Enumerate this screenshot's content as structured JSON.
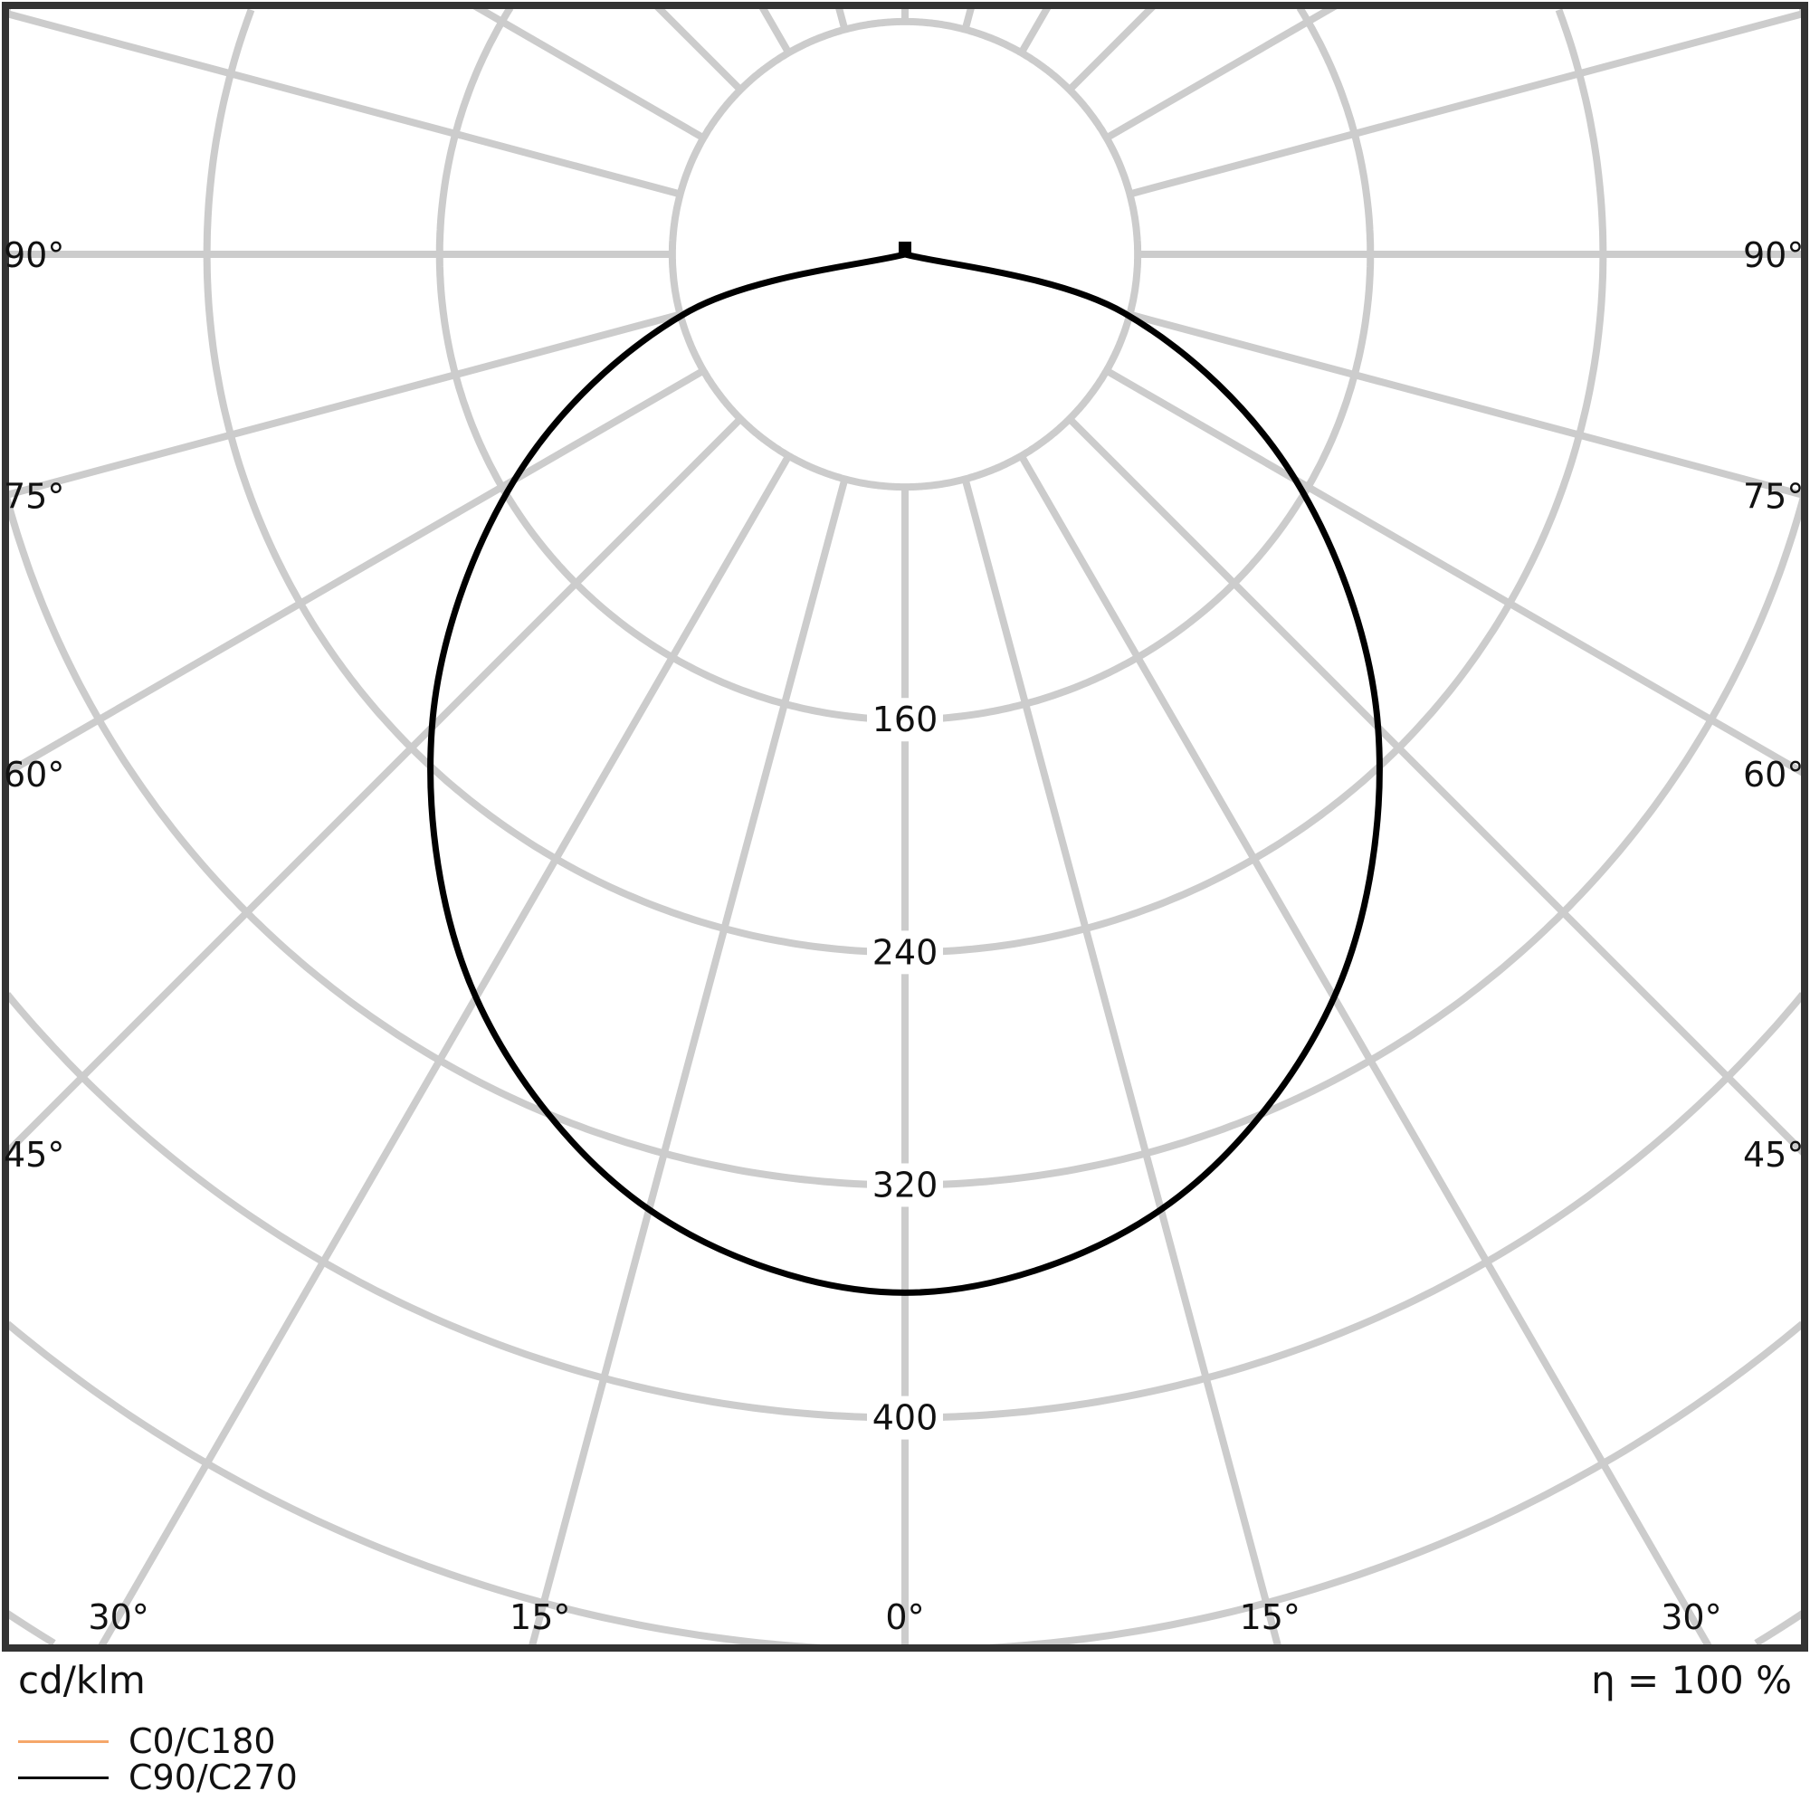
{
  "chart_data": {
    "type": "polar",
    "unit_label": "cd/klm",
    "efficiency_label": "η = 100 %",
    "radial_ticks": [
      160,
      240,
      320,
      400
    ],
    "radial_grid_step": 80,
    "angle_labels_bottom": [
      "30°",
      "15°",
      "0°",
      "15°",
      "30°"
    ],
    "angle_labels_side": [
      "90°",
      "75°",
      "60°",
      "45°"
    ],
    "grid": true,
    "grid_color": "#cccccc",
    "legend_placement": "bottom-left",
    "angles_deg": [
      0,
      15,
      30,
      45,
      60,
      75,
      90
    ],
    "series": [
      {
        "name": "C0/C180",
        "color": "#f5a76a",
        "values": [
          357,
          340,
          295,
          230,
          155,
          78,
          0
        ]
      },
      {
        "name": "C90/C270",
        "color": "#000000",
        "values": [
          357,
          340,
          295,
          230,
          155,
          78,
          0
        ]
      }
    ]
  }
}
